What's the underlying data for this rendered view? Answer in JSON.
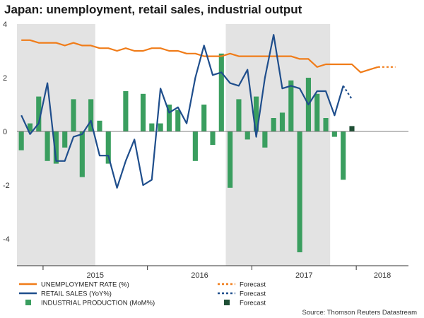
{
  "title": "Japan: unemployment, retail sales, industrial output",
  "source": "Source: Thomson Reuters Datastream",
  "chart_data": {
    "type": "line",
    "ylim": [
      -5,
      4
    ],
    "y_ticks": [
      4,
      2,
      0,
      -2,
      -4
    ],
    "x_tick_labels": [
      "2015",
      "2016",
      "2017",
      "2018"
    ],
    "grid": false,
    "shaded_periods": [
      [
        "2014-10",
        "2015-06"
      ],
      [
        "2016-10",
        "2017-09"
      ]
    ],
    "months": [
      "2014-10",
      "2014-11",
      "2014-12",
      "2015-01",
      "2015-02",
      "2015-03",
      "2015-04",
      "2015-05",
      "2015-06",
      "2015-07",
      "2015-08",
      "2015-09",
      "2015-10",
      "2015-11",
      "2015-12",
      "2016-01",
      "2016-02",
      "2016-03",
      "2016-04",
      "2016-05",
      "2016-06",
      "2016-07",
      "2016-08",
      "2016-09",
      "2016-10",
      "2016-11",
      "2016-12",
      "2017-01",
      "2017-02",
      "2017-03",
      "2017-04",
      "2017-05",
      "2017-06",
      "2017-07",
      "2017-08",
      "2017-09",
      "2017-10",
      "2017-11",
      "2017-12",
      "2018-01",
      "2018-02",
      "2018-03",
      "2018-04",
      "2018-05",
      "2018-06"
    ],
    "series": [
      {
        "name": "UNEMPLOYMENT RATE (%)",
        "type": "line",
        "color": "#f07c19",
        "values": [
          3.4,
          3.4,
          3.3,
          3.3,
          3.3,
          3.2,
          3.3,
          3.2,
          3.2,
          3.1,
          3.1,
          3.0,
          3.1,
          3.0,
          3.0,
          3.1,
          3.1,
          3.0,
          3.0,
          2.9,
          2.9,
          2.8,
          2.8,
          2.8,
          2.9,
          2.8,
          2.8,
          2.8,
          2.8,
          2.8,
          2.8,
          2.8,
          2.7,
          2.7,
          2.4,
          2.5,
          2.5,
          2.5,
          2.5,
          2.2,
          2.3,
          2.4,
          null,
          null,
          null
        ],
        "forecast": [
          null,
          null,
          null,
          null,
          null,
          null,
          null,
          null,
          null,
          null,
          null,
          null,
          null,
          null,
          null,
          null,
          null,
          null,
          null,
          null,
          null,
          null,
          null,
          null,
          null,
          null,
          null,
          null,
          null,
          null,
          null,
          null,
          null,
          null,
          null,
          null,
          null,
          null,
          null,
          null,
          null,
          2.4,
          2.4,
          2.4,
          null
        ]
      },
      {
        "name": "RETAIL SALES (YoY%)",
        "type": "line",
        "color": "#1f4e8c",
        "values": [
          0.6,
          -0.1,
          0.3,
          1.8,
          -1.1,
          -1.1,
          -0.2,
          -0.1,
          0.4,
          -0.9,
          -0.9,
          -2.1,
          -1.1,
          -0.3,
          -2.0,
          -1.8,
          1.6,
          0.7,
          0.9,
          0.3,
          2.0,
          3.2,
          2.1,
          2.2,
          1.8,
          1.7,
          2.3,
          -0.2,
          2.0,
          3.6,
          1.6,
          1.7,
          1.6,
          1.0,
          1.5,
          1.5,
          0.6,
          1.7,
          null,
          null,
          null,
          null,
          null,
          null,
          null
        ],
        "forecast": [
          null,
          null,
          null,
          null,
          null,
          null,
          null,
          null,
          null,
          null,
          null,
          null,
          null,
          null,
          null,
          null,
          null,
          null,
          null,
          null,
          null,
          null,
          null,
          null,
          null,
          null,
          null,
          null,
          null,
          null,
          null,
          null,
          null,
          null,
          null,
          null,
          null,
          1.7,
          1.2,
          null,
          null,
          null,
          null,
          null,
          null
        ]
      },
      {
        "name": "INDUSTRIAL PRODUCTION (MoM%)",
        "type": "bar",
        "color": "#3a9e5f",
        "values": [
          -0.7,
          0.3,
          1.3,
          -1.1,
          -1.2,
          -0.6,
          1.2,
          -1.7,
          1.2,
          0.4,
          -1.2,
          0.0,
          1.5,
          0.0,
          1.4,
          0.3,
          0.3,
          1.0,
          0.8,
          0.0,
          -1.1,
          1.0,
          -0.5,
          2.9,
          -2.1,
          1.2,
          -0.3,
          1.3,
          -0.6,
          0.5,
          0.7,
          1.9,
          -4.5,
          2.0,
          1.4,
          0.5,
          -0.2,
          -1.8,
          null,
          null,
          null,
          null,
          null,
          null,
          null
        ],
        "forecast_value": 0.2,
        "forecast_color": "#1f4f35"
      }
    ],
    "legend": {
      "placement": "bottom",
      "rows": [
        {
          "label": "UNEMPLOYMENT RATE (%)",
          "forecast": "Forecast"
        },
        {
          "label": "RETAIL SALES (YoY%)",
          "forecast": "Forecast"
        },
        {
          "label": "INDUSTRIAL PRODUCTION (MoM%)",
          "forecast": "Forecast"
        }
      ]
    }
  }
}
